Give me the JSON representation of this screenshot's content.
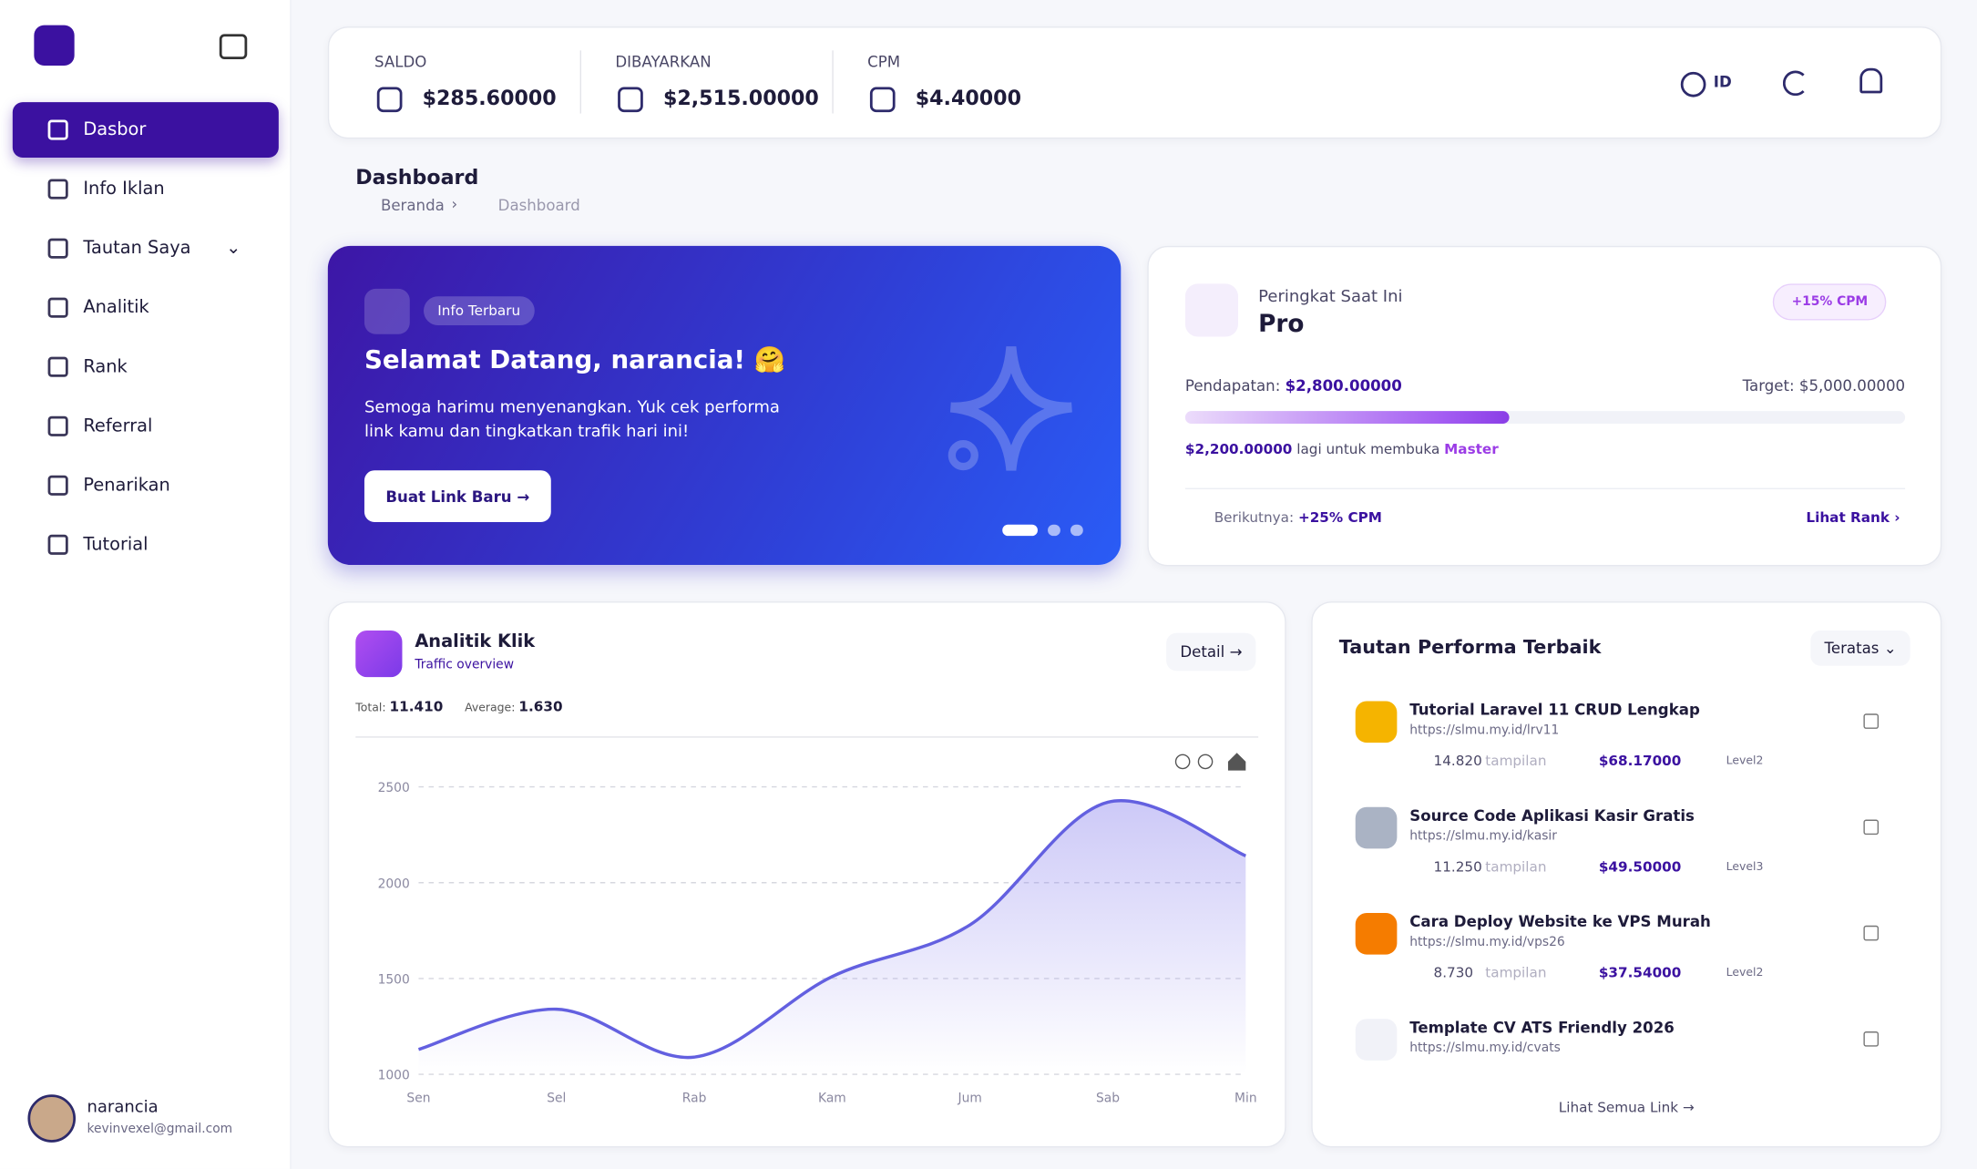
{
  "sidebar": {
    "nav": [
      "Dasbor",
      "Info Iklan",
      "Tautan Saya",
      "Analitik",
      "Rank",
      "Referral",
      "Penarikan",
      "Tutorial"
    ],
    "user": {
      "name": "narancia",
      "email": "kevinvexel@gmail.com"
    }
  },
  "topbar": {
    "stats": [
      {
        "label": "SALDO",
        "value": "$285.60000"
      },
      {
        "label": "DIBAYARKAN",
        "value": "$2,515.00000"
      },
      {
        "label": "CPM",
        "value": "$4.40000"
      }
    ],
    "language": "ID"
  },
  "page": {
    "title": "Dashboard",
    "breadcrumb": [
      "Beranda",
      "Dashboard"
    ]
  },
  "banner": {
    "badge": "Info Terbaru",
    "title": "Selamat Datang, narancia! 🤗",
    "text": "Semoga harimu menyenangkan. Yuk cek performa link kamu dan tingkatkan trafik hari ini!",
    "button": "Buat Link Baru"
  },
  "rank": {
    "label": "Peringkat Saat Ini",
    "name": "Pro",
    "badge": "+15% CPM",
    "earnings_label": "Pendapatan:",
    "earnings": "$2,800.00000",
    "target": "Target: $5,000.00000",
    "progress": 45,
    "remaining": "$2,200.00000",
    "remaining_text": "lagi untuk membuka",
    "next_rank": "Master",
    "next_label": "Berikutnya:",
    "next_bonus": "+25% CPM",
    "link": "Lihat Rank"
  },
  "chart_data": {
    "type": "line",
    "title": "Analitik Klik",
    "subtitle": "Traffic overview",
    "total_label": "Total:",
    "total": "11.410",
    "average_label": "Average:",
    "average": "1.630",
    "button": "Detail",
    "categories": [
      "Sen",
      "Sel",
      "Rab",
      "Kam",
      "Jum",
      "Sab",
      "Min"
    ],
    "series": [
      {
        "name": "Klik",
        "color": "#6360e0",
        "values": [
          1130,
          1340,
          1090,
          1510,
          1780,
          2420,
          2140
        ]
      }
    ],
    "ylim": [
      1000,
      2500
    ],
    "yticks": [
      1000,
      1500,
      2000,
      2500
    ],
    "grid": true
  },
  "top_links": {
    "title": "Tautan Performa Terbaik",
    "filter": "Teratas",
    "items": [
      {
        "title": "Tutorial Laravel 11 CRUD Lengkap",
        "url": "https://slmu.my.id/lrv11",
        "views": "14.820",
        "views_label": "tampilan",
        "earnings": "$68.17000",
        "level": "Level2"
      },
      {
        "title": "Source Code Aplikasi Kasir Gratis",
        "url": "https://slmu.my.id/kasir",
        "views": "11.250",
        "views_label": "tampilan",
        "earnings": "$49.50000",
        "level": "Level3"
      },
      {
        "title": "Cara Deploy Website ke VPS Murah",
        "url": "https://slmu.my.id/vps26",
        "views": "8.730",
        "views_label": "tampilan",
        "earnings": "$37.54000",
        "level": "Level2"
      },
      {
        "title": "Template CV ATS Friendly 2026",
        "url": "https://slmu.my.id/cvats"
      }
    ],
    "footer": "Lihat Semua Link"
  }
}
